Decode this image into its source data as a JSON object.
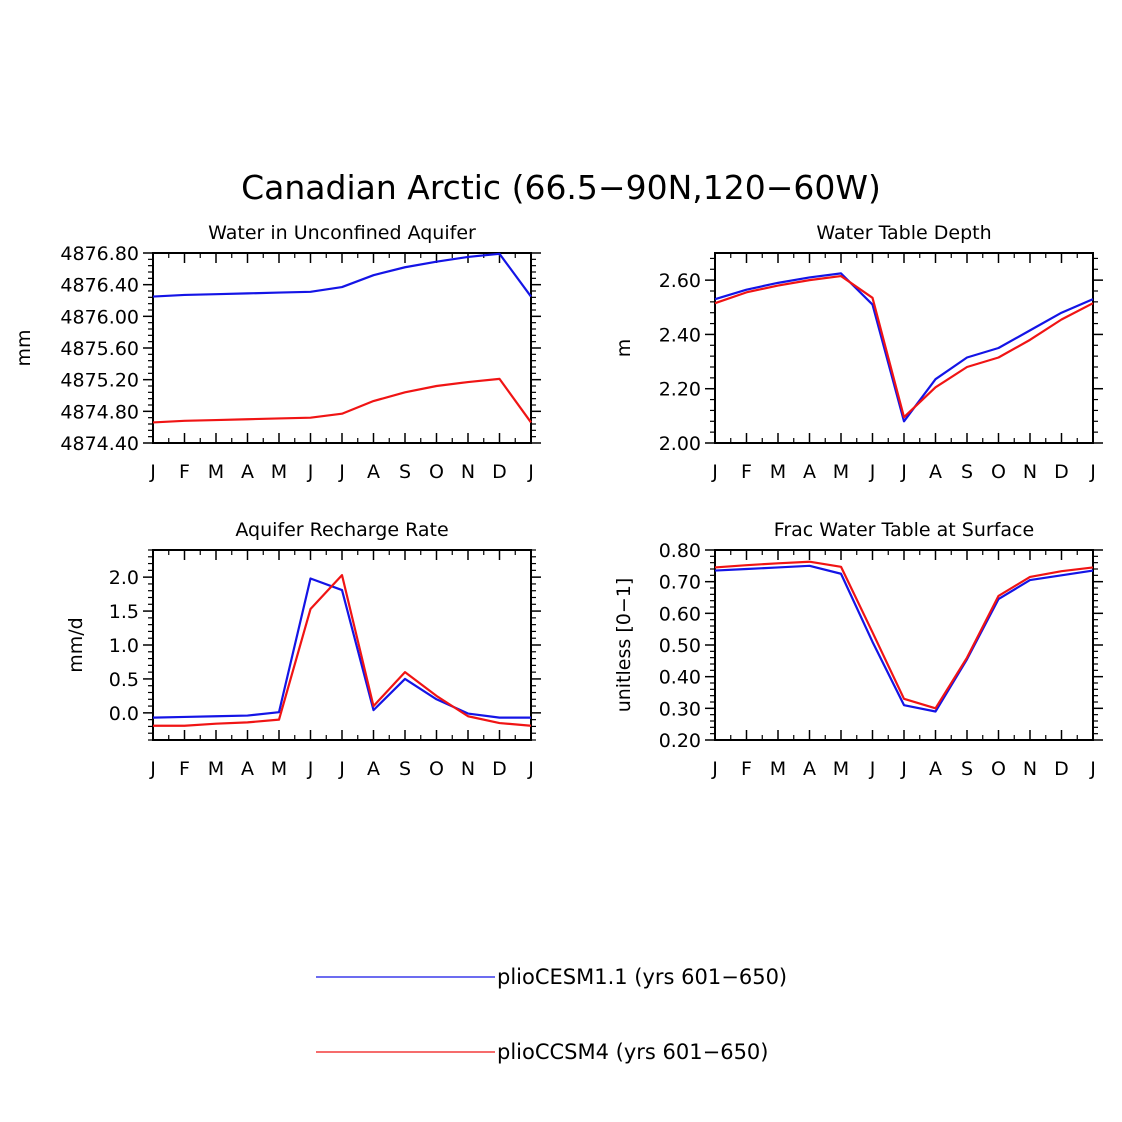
{
  "figure_title": "Canadian Arctic (66.5−90N,120−60W)",
  "colors": {
    "blue": "#1414e6",
    "red": "#f01414",
    "axis": "#000000"
  },
  "legend": {
    "items": [
      {
        "label": "plioCESM1.1 (yrs 601−650)",
        "color": "#1414e6"
      },
      {
        "label": "plioCCSM4 (yrs 601−650)",
        "color": "#f01414"
      }
    ]
  },
  "chart_data": [
    {
      "type": "line",
      "title": "Water in Unconfined Aquifer",
      "ylabel": "mm",
      "ylim": [
        4874.4,
        4876.8
      ],
      "yticks": [
        4874.4,
        4874.8,
        4875.2,
        4875.6,
        4876.0,
        4876.4,
        4876.8
      ],
      "ytick_labels": [
        "4874.40",
        "4874.80",
        "4875.20",
        "4875.60",
        "4876.00",
        "4876.40",
        "4876.80"
      ],
      "categories": [
        "J",
        "F",
        "M",
        "A",
        "M",
        "J",
        "J",
        "A",
        "S",
        "O",
        "N",
        "D",
        "J"
      ],
      "series": [
        {
          "name": "plioCESM1.1 (yrs 601−650)",
          "color": "#1414e6",
          "values": [
            4876.25,
            4876.27,
            4876.28,
            4876.29,
            4876.3,
            4876.31,
            4876.37,
            4876.52,
            4876.62,
            4876.69,
            4876.75,
            4876.79,
            4876.25
          ]
        },
        {
          "name": "plioCCSM4 (yrs 601−650)",
          "color": "#f01414",
          "values": [
            4874.66,
            4874.68,
            4874.69,
            4874.7,
            4874.71,
            4874.72,
            4874.77,
            4874.93,
            4875.04,
            4875.12,
            4875.17,
            4875.21,
            4874.66
          ]
        }
      ]
    },
    {
      "type": "line",
      "title": "Water Table Depth",
      "ylabel": "m",
      "ylim": [
        2.0,
        2.7
      ],
      "yticks": [
        2.0,
        2.2,
        2.4,
        2.6
      ],
      "ytick_labels": [
        "2.00",
        "2.20",
        "2.40",
        "2.60"
      ],
      "categories": [
        "J",
        "F",
        "M",
        "A",
        "M",
        "J",
        "J",
        "A",
        "S",
        "O",
        "N",
        "D",
        "J"
      ],
      "series": [
        {
          "name": "plioCESM1.1 (yrs 601−650)",
          "color": "#1414e6",
          "values": [
            2.53,
            2.565,
            2.59,
            2.61,
            2.625,
            2.51,
            2.08,
            2.235,
            2.315,
            2.35,
            2.415,
            2.48,
            2.53
          ]
        },
        {
          "name": "plioCCSM4 (yrs 601−650)",
          "color": "#f01414",
          "values": [
            2.515,
            2.555,
            2.58,
            2.6,
            2.615,
            2.535,
            2.095,
            2.205,
            2.28,
            2.315,
            2.38,
            2.455,
            2.515
          ]
        }
      ]
    },
    {
      "type": "line",
      "title": "Aquifer Recharge Rate",
      "ylabel": "mm/d",
      "ylim": [
        -0.4,
        2.4
      ],
      "yticks": [
        0.0,
        0.5,
        1.0,
        1.5,
        2.0
      ],
      "ytick_labels": [
        "0.0",
        "0.5",
        "1.0",
        "1.5",
        "2.0"
      ],
      "categories": [
        "J",
        "F",
        "M",
        "A",
        "M",
        "J",
        "J",
        "A",
        "S",
        "O",
        "N",
        "D",
        "J"
      ],
      "series": [
        {
          "name": "plioCESM1.1 (yrs 601−650)",
          "color": "#1414e6",
          "values": [
            -0.07,
            -0.06,
            -0.05,
            -0.04,
            0.01,
            1.98,
            1.81,
            0.04,
            0.5,
            0.2,
            -0.01,
            -0.07,
            -0.07
          ]
        },
        {
          "name": "plioCCSM4 (yrs 601−650)",
          "color": "#f01414",
          "values": [
            -0.19,
            -0.19,
            -0.16,
            -0.14,
            -0.1,
            1.53,
            2.03,
            0.1,
            0.6,
            0.25,
            -0.05,
            -0.15,
            -0.19
          ]
        }
      ]
    },
    {
      "type": "line",
      "title": "Frac Water Table at Surface",
      "ylabel": "unitless [0−1]",
      "ylim": [
        0.2,
        0.8
      ],
      "yticks": [
        0.2,
        0.3,
        0.4,
        0.5,
        0.6,
        0.7,
        0.8
      ],
      "ytick_labels": [
        "0.20",
        "0.30",
        "0.40",
        "0.50",
        "0.60",
        "0.70",
        "0.80"
      ],
      "categories": [
        "J",
        "F",
        "M",
        "A",
        "M",
        "J",
        "J",
        "A",
        "S",
        "O",
        "N",
        "D",
        "J"
      ],
      "series": [
        {
          "name": "plioCESM1.1 (yrs 601−650)",
          "color": "#1414e6",
          "values": [
            0.735,
            0.74,
            0.745,
            0.75,
            0.725,
            0.51,
            0.31,
            0.29,
            0.455,
            0.645,
            0.705,
            0.72,
            0.735
          ]
        },
        {
          "name": "plioCCSM4 (yrs 601−650)",
          "color": "#f01414",
          "values": [
            0.745,
            0.752,
            0.758,
            0.763,
            0.747,
            0.54,
            0.33,
            0.3,
            0.46,
            0.655,
            0.715,
            0.733,
            0.745
          ]
        }
      ]
    }
  ]
}
